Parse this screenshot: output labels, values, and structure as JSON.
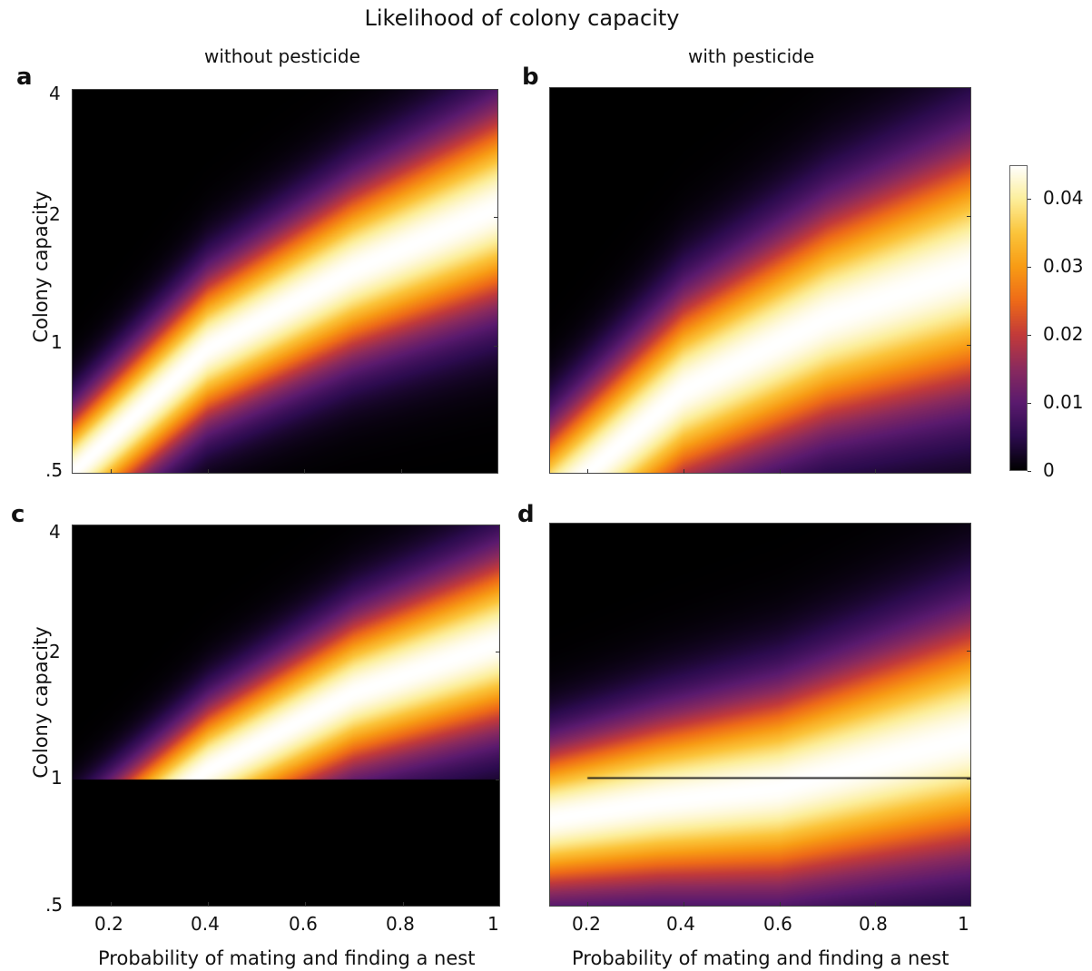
{
  "title": "Likelihood of colony capacity",
  "columns": [
    "without pesticide",
    "with pesticide"
  ],
  "chart_data": [
    {
      "type": "heatmap",
      "panel": "a",
      "column_title": "without pesticide",
      "ylabel": "Colony capacity",
      "xlabel": "",
      "xlim": [
        0.12,
        1.0
      ],
      "ylim": [
        0.5,
        4.0
      ],
      "y_scale": "log",
      "xticks": [
        "0.2",
        "0.4",
        "0.6",
        "0.8",
        "1"
      ],
      "xticklabels_visible": false,
      "yticks": [
        0.5,
        1,
        2,
        4
      ],
      "yticklabels": [
        ".5",
        "1",
        "2",
        "4"
      ],
      "ridge": {
        "x": [
          0.12,
          0.4,
          0.7,
          1.0
        ],
        "y": [
          0.5,
          0.98,
          1.5,
          2.1
        ]
      },
      "spread_log": 0.3,
      "y_floor": null,
      "vmax": 0.045
    },
    {
      "type": "heatmap",
      "panel": "b",
      "column_title": "with pesticide",
      "ylabel": "",
      "xlabel": "",
      "xlim": [
        0.12,
        1.0
      ],
      "ylim": [
        0.5,
        4.0
      ],
      "y_scale": "log",
      "xticks": [
        "0.2",
        "0.4",
        "0.6",
        "0.8",
        "1"
      ],
      "xticklabels_visible": false,
      "ridge": {
        "x": [
          0.12,
          0.4,
          0.7,
          1.0
        ],
        "y": [
          0.42,
          0.78,
          1.15,
          1.5
        ]
      },
      "spread_log": 0.38,
      "y_floor": null,
      "vmax": 0.045
    },
    {
      "type": "heatmap",
      "panel": "c",
      "column_title": "",
      "ylabel": "Colony capacity",
      "xlabel": "Probability of mating and finding a nest",
      "xlim": [
        0.12,
        1.0
      ],
      "ylim": [
        0.5,
        4.0
      ],
      "y_scale": "log",
      "xticks": [
        "0.2",
        "0.4",
        "0.6",
        "0.8",
        "1"
      ],
      "xticklabels_visible": true,
      "yticks": [
        0.5,
        1,
        2,
        4
      ],
      "yticklabels": [
        ".5",
        "1",
        "2",
        "4"
      ],
      "ridge": {
        "x": [
          0.12,
          0.4,
          0.7,
          1.0
        ],
        "y": [
          0.6,
          1.05,
          1.6,
          2.1
        ]
      },
      "spread_log": 0.27,
      "y_floor": 1.0,
      "vmax": 0.045
    },
    {
      "type": "heatmap",
      "panel": "d",
      "column_title": "",
      "ylabel": "",
      "xlabel": "Probability of mating and finding a nest",
      "xlim": [
        0.12,
        1.0
      ],
      "ylim": [
        0.5,
        4.0
      ],
      "y_scale": "log",
      "xticks": [
        "0.2",
        "0.4",
        "0.6",
        "0.8",
        "1"
      ],
      "xticklabels_visible": true,
      "ridge": {
        "x": [
          0.12,
          0.35,
          0.6,
          1.0
        ],
        "y": [
          0.8,
          0.88,
          0.95,
          1.25
        ]
      },
      "spread_log": 0.36,
      "y_floor": null,
      "hline": 1.0,
      "vmax": 0.045
    }
  ],
  "colorbar": {
    "colormap": "inferno-like",
    "stops": [
      "#000000",
      "#2c0b4e",
      "#5a1a6e",
      "#8a2a5e",
      "#c23a3a",
      "#ee6a18",
      "#f89b14",
      "#fbc43a",
      "#fcee9a",
      "#ffffff"
    ],
    "vmin": 0,
    "vmax": 0.045,
    "ticks": [
      0,
      0.01,
      0.02,
      0.03,
      0.04
    ],
    "ticklabels": [
      "0",
      "0.01",
      "0.02",
      "0.03",
      "0.04"
    ]
  }
}
